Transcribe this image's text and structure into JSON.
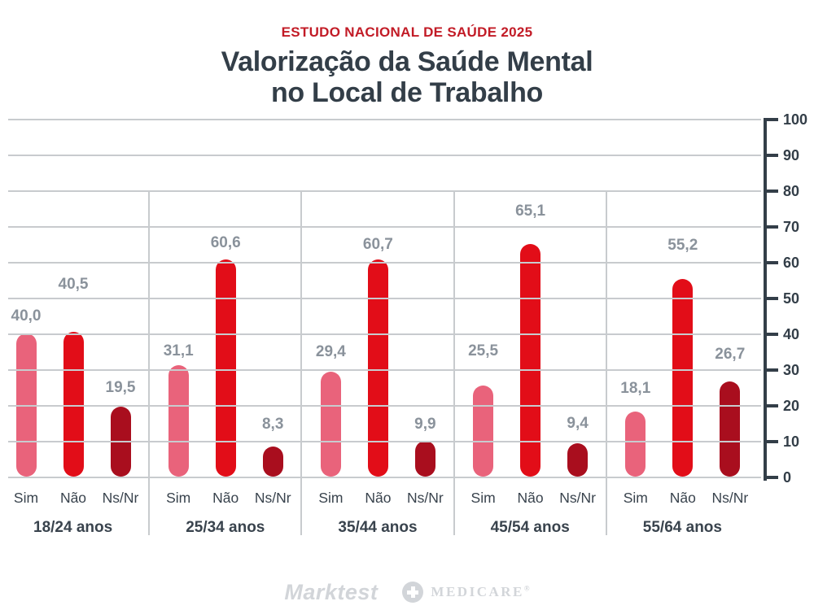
{
  "header": {
    "kicker": "ESTUDO NACIONAL DE SAÚDE 2025",
    "title_line1": "Valorização da Saúde Mental",
    "title_line2": "no Local de Trabalho"
  },
  "chart_data": {
    "type": "bar",
    "title": "Valorização da Saúde Mental no Local de Trabalho",
    "subtitle": "ESTUDO NACIONAL DE SAÚDE 2025",
    "categories": [
      "18/24 anos",
      "25/34 anos",
      "35/44 anos",
      "45/54 anos",
      "55/64 anos"
    ],
    "series": [
      {
        "name": "Sim",
        "color": "#E9637B",
        "values": [
          40.0,
          31.1,
          29.4,
          25.5,
          18.1
        ]
      },
      {
        "name": "Não",
        "color": "#E20D18",
        "values": [
          40.5,
          60.6,
          60.7,
          65.1,
          55.2
        ]
      },
      {
        "name": "Ns/Nr",
        "color": "#A90E1E",
        "values": [
          19.5,
          8.3,
          9.9,
          9.4,
          26.7
        ]
      }
    ],
    "ylim": [
      0,
      100
    ],
    "yticks": [
      0,
      10,
      20,
      30,
      40,
      50,
      60,
      70,
      80,
      90,
      100
    ],
    "y_axis_side": "right",
    "grid": true,
    "legend_position": "none",
    "decimal_separator": ",",
    "value_label_raise": [
      [
        21,
        58,
        23
      ],
      [
        17,
        20,
        27
      ],
      [
        24,
        18,
        20
      ],
      [
        42,
        40,
        24
      ],
      [
        28,
        41,
        33
      ]
    ]
  },
  "footer": {
    "marktest": "Marktest",
    "medicare": "MEDICARE",
    "medicare_mark": "®"
  },
  "colors": {
    "kicker_red": "#C21B26",
    "title_dark": "#333E48",
    "category_dark": "#39434D",
    "value_label_gray": "#8A929B",
    "grid_gray": "#C8CBCE",
    "axis_dark": "#333E48",
    "footer_gray": "#D2D5D9",
    "background": "#FFFFFF"
  }
}
